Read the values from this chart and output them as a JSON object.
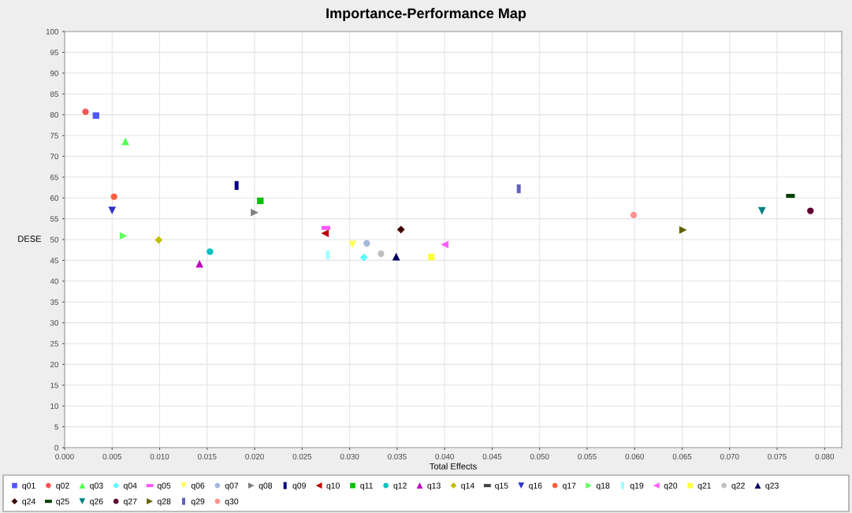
{
  "chart_data": {
    "type": "scatter",
    "title": "Importance-Performance Map",
    "xlabel": "Total Effects",
    "ylabel": "DESE",
    "xlim": [
      0,
      0.0818
    ],
    "ylim": [
      0,
      100
    ],
    "xticks": [
      {
        "value": 0,
        "label": "0.000"
      },
      {
        "value": 0.005,
        "label": "0.005"
      },
      {
        "value": 0.01,
        "label": "0.010"
      },
      {
        "value": 0.015,
        "label": "0.015"
      },
      {
        "value": 0.02,
        "label": "0.020"
      },
      {
        "value": 0.025,
        "label": "0.025"
      },
      {
        "value": 0.03,
        "label": "0.030"
      },
      {
        "value": 0.035,
        "label": "0.035"
      },
      {
        "value": 0.04,
        "label": "0.040"
      },
      {
        "value": 0.045,
        "label": "0.045"
      },
      {
        "value": 0.05,
        "label": "0.050"
      },
      {
        "value": 0.055,
        "label": "0.055"
      },
      {
        "value": 0.06,
        "label": "0.060"
      },
      {
        "value": 0.065,
        "label": "0.065"
      },
      {
        "value": 0.07,
        "label": "0.070"
      },
      {
        "value": 0.075,
        "label": "0.075"
      },
      {
        "value": 0.08,
        "label": "0.080"
      }
    ],
    "yticks": [
      0,
      5,
      10,
      15,
      20,
      25,
      30,
      35,
      40,
      45,
      50,
      55,
      60,
      65,
      70,
      75,
      80,
      85,
      90,
      95,
      100
    ],
    "grid": true,
    "legend": "bottom",
    "series": [
      {
        "name": "q01",
        "color": "#5555ff",
        "marker": "square",
        "x": [
          0.0033
        ],
        "values": [
          79.8
        ]
      },
      {
        "name": "q02",
        "color": "#ff5555",
        "marker": "circle",
        "x": [
          0.0022
        ],
        "values": [
          80.7
        ]
      },
      {
        "name": "q03",
        "color": "#55ff55",
        "marker": "triangle",
        "x": [
          0.0064
        ],
        "values": [
          73.6
        ]
      },
      {
        "name": "q04",
        "color": "#55ffff",
        "marker": "diamond",
        "x": [
          0.0315
        ],
        "values": [
          45.7
        ]
      },
      {
        "name": "q05",
        "color": "#ff55ff",
        "marker": "rect_h",
        "x": [
          0.0275
        ],
        "values": [
          52.8
        ]
      },
      {
        "name": "q06",
        "color": "#ffff55",
        "marker": "triangle_down",
        "x": [
          0.0303
        ],
        "values": [
          48.8
        ]
      },
      {
        "name": "q07",
        "color": "#a0b8e0",
        "marker": "circle",
        "x": [
          0.0318
        ],
        "values": [
          49.1
        ]
      },
      {
        "name": "q08",
        "color": "#808080",
        "marker": "triangle_right",
        "x": [
          0.02
        ],
        "values": [
          56.5
        ]
      },
      {
        "name": "q09",
        "color": "#000080",
        "marker": "rect_v",
        "x": [
          0.0181
        ],
        "values": [
          63.0
        ]
      },
      {
        "name": "q10",
        "color": "#c00000",
        "marker": "triangle_left",
        "x": [
          0.0274
        ],
        "values": [
          51.5
        ]
      },
      {
        "name": "q11",
        "color": "#00c000",
        "marker": "square",
        "x": [
          0.0206
        ],
        "values": [
          59.3
        ]
      },
      {
        "name": "q12",
        "color": "#00c0c0",
        "marker": "circle",
        "x": [
          0.0153
        ],
        "values": [
          47.1
        ]
      },
      {
        "name": "q13",
        "color": "#c000c0",
        "marker": "triangle",
        "x": [
          0.0142
        ],
        "values": [
          44.2
        ]
      },
      {
        "name": "q14",
        "color": "#c0c000",
        "marker": "diamond",
        "x": [
          0.0099
        ],
        "values": [
          49.9
        ]
      },
      {
        "name": "q15",
        "color": "#404040",
        "marker": "rect_h",
        "x": [
          null
        ],
        "values": [
          null
        ]
      },
      {
        "name": "q16",
        "color": "#3333cc",
        "marker": "triangle_down",
        "x": [
          0.005
        ],
        "values": [
          57.0
        ]
      },
      {
        "name": "q17",
        "color": "#ff6040",
        "marker": "circle",
        "x": [
          0.0052
        ],
        "values": [
          60.3
        ]
      },
      {
        "name": "q18",
        "color": "#60ff60",
        "marker": "triangle_right",
        "x": [
          0.0062
        ],
        "values": [
          50.9
        ]
      },
      {
        "name": "q19",
        "color": "#a0ffff",
        "marker": "rect_v",
        "x": [
          0.0277
        ],
        "values": [
          46.3
        ]
      },
      {
        "name": "q20",
        "color": "#ff60ff",
        "marker": "triangle_left",
        "x": [
          0.04
        ],
        "values": [
          48.8
        ]
      },
      {
        "name": "q21",
        "color": "#ffff40",
        "marker": "square",
        "x": [
          0.0386
        ],
        "values": [
          45.8
        ]
      },
      {
        "name": "q22",
        "color": "#c0c0c0",
        "marker": "circle",
        "x": [
          0.0333
        ],
        "values": [
          46.6
        ]
      },
      {
        "name": "q23",
        "color": "#000060",
        "marker": "triangle",
        "x": [
          0.0349
        ],
        "values": [
          45.9
        ]
      },
      {
        "name": "q24",
        "color": "#400000",
        "marker": "diamond",
        "x": [
          0.0354
        ],
        "values": [
          52.4
        ]
      },
      {
        "name": "q25",
        "color": "#004000",
        "marker": "rect_h",
        "x": [
          0.0764
        ],
        "values": [
          60.5
        ]
      },
      {
        "name": "q26",
        "color": "#008080",
        "marker": "triangle_down",
        "x": [
          0.0734
        ],
        "values": [
          56.9
        ]
      },
      {
        "name": "q27",
        "color": "#600030",
        "marker": "circle",
        "x": [
          0.0785
        ],
        "values": [
          56.9
        ]
      },
      {
        "name": "q28",
        "color": "#606000",
        "marker": "triangle_right",
        "x": [
          0.0651
        ],
        "values": [
          52.3
        ]
      },
      {
        "name": "q29",
        "color": "#6060c0",
        "marker": "rect_v",
        "x": [
          0.0478
        ],
        "values": [
          62.2
        ]
      },
      {
        "name": "q30",
        "color": "#ff9090",
        "marker": "circle",
        "x": [
          0.0599
        ],
        "values": [
          55.9
        ]
      }
    ]
  }
}
